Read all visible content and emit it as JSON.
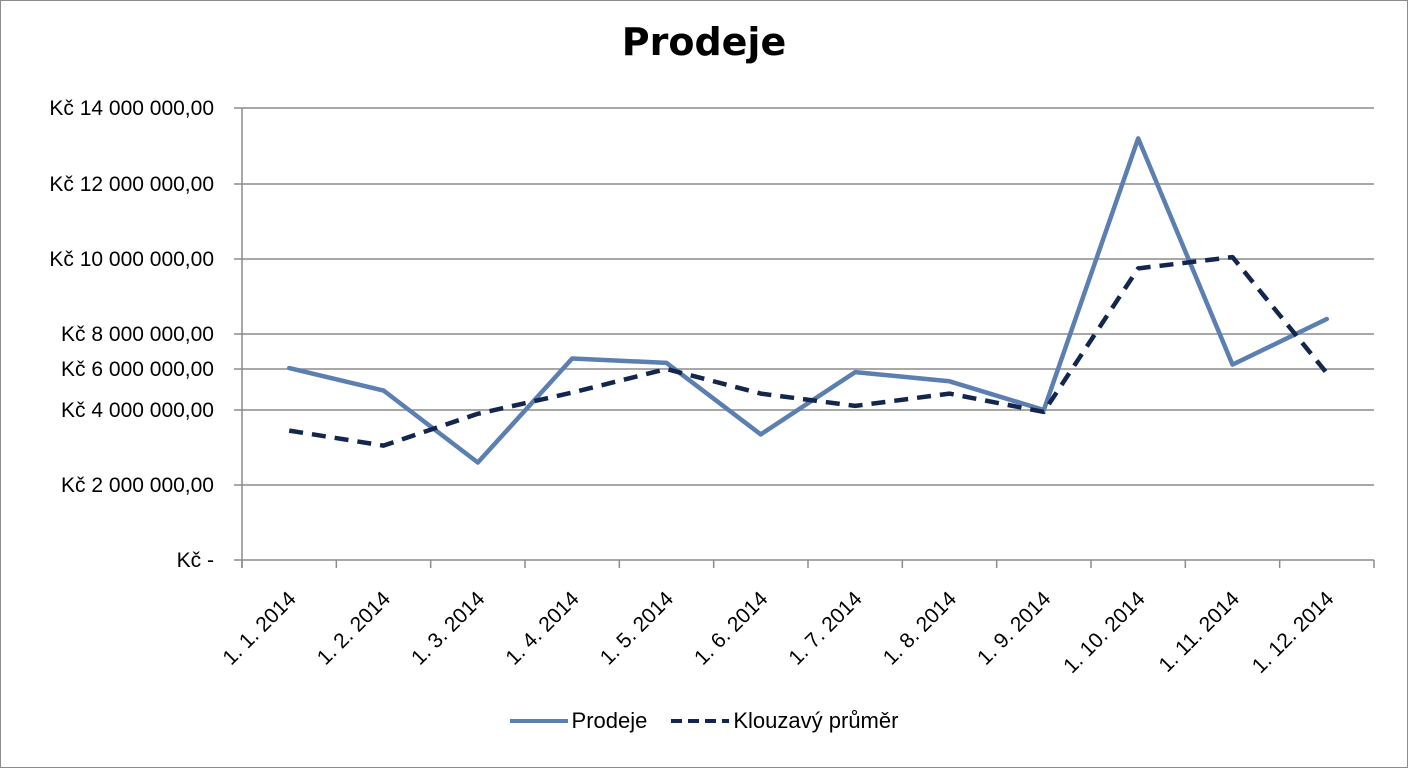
{
  "chart_data": {
    "type": "line",
    "title": "Prodeje",
    "xlabel": "",
    "ylabel": "",
    "categories": [
      "1. 1. 2014",
      "1. 2. 2014",
      "1. 3. 2014",
      "1. 4. 2014",
      "1. 5. 2014",
      "1. 6. 2014",
      "1. 7. 2014",
      "1. 8. 2014",
      "1. 9. 2014",
      "1. 10. 2014",
      "1. 11. 2014",
      "1. 12. 2014"
    ],
    "y_ticks": [
      {
        "value": 0,
        "label": "Kč -"
      },
      {
        "value": 2000000,
        "label": "Kč 2 000 000,00"
      },
      {
        "value": 4000000,
        "label": "Kč 4 000 000,00"
      },
      {
        "value": 6000000,
        "label": "Kč 6 000 000,00"
      },
      {
        "value": 8000000,
        "label": "Kč 8 000 000,00"
      },
      {
        "value": 10000000,
        "label": "Kč 10 000 000,00"
      },
      {
        "value": 12000000,
        "label": "Kč 12 000 000,00"
      },
      {
        "value": 14000000,
        "label": "Kč 14 000 000,00"
      }
    ],
    "ylim": [
      0,
      14000000
    ],
    "grid": true,
    "legend_position": "bottom",
    "series": [
      {
        "name": "Prodeje",
        "style": "solid",
        "color": "#5b7fb0",
        "values": [
          6050000,
          4950000,
          2600000,
          6600000,
          6350000,
          3350000,
          5850000,
          5400000,
          4000000,
          13200000,
          6250000,
          8400000
        ]
      },
      {
        "name": "Klouzavý průměr",
        "style": "dashed",
        "color": "#12264e",
        "values": [
          3450000,
          3050000,
          3900000,
          4850000,
          6000000,
          4800000,
          4200000,
          4800000,
          3950000,
          9750000,
          10050000,
          5800000
        ]
      }
    ]
  }
}
